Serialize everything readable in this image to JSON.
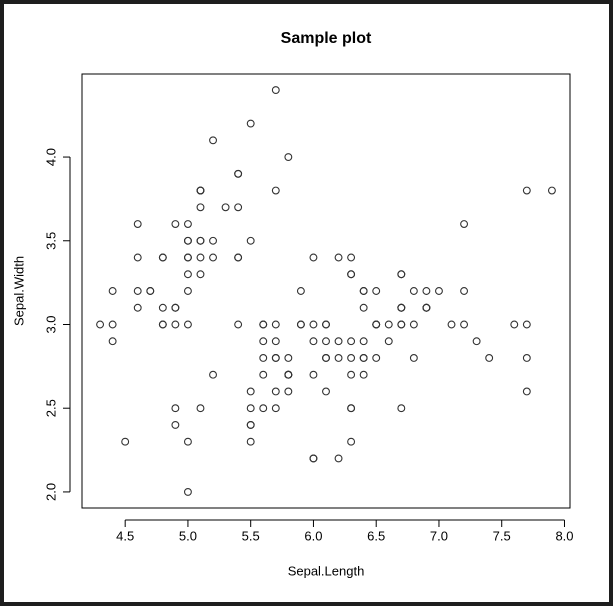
{
  "chart_data": {
    "type": "scatter",
    "title": "Sample plot",
    "x_label": "Sepal.Length",
    "y_label": "Sepal.Width",
    "x": [
      5.1,
      4.9,
      4.7,
      4.6,
      5.0,
      5.4,
      4.6,
      5.0,
      4.4,
      4.9,
      5.4,
      4.8,
      4.8,
      4.3,
      5.8,
      5.7,
      5.4,
      5.1,
      5.7,
      5.1,
      5.4,
      5.1,
      4.6,
      5.1,
      4.8,
      5.0,
      5.0,
      5.2,
      5.2,
      4.7,
      4.8,
      5.4,
      5.2,
      5.5,
      4.9,
      5.0,
      5.5,
      4.9,
      4.4,
      5.1,
      5.0,
      4.5,
      4.4,
      5.0,
      5.1,
      4.8,
      5.1,
      4.6,
      5.3,
      5.0,
      7.0,
      6.4,
      6.9,
      5.5,
      6.5,
      5.7,
      6.3,
      4.9,
      6.6,
      5.2,
      5.0,
      5.9,
      6.0,
      6.1,
      5.6,
      6.7,
      5.6,
      5.8,
      6.2,
      5.6,
      5.9,
      6.1,
      6.3,
      6.1,
      6.4,
      6.6,
      6.8,
      6.7,
      6.0,
      5.7,
      5.5,
      5.5,
      5.8,
      6.0,
      5.4,
      6.0,
      6.7,
      6.3,
      5.6,
      5.5,
      5.5,
      6.1,
      5.8,
      5.0,
      5.6,
      5.7,
      5.7,
      6.2,
      5.1,
      5.7,
      6.3,
      5.8,
      7.1,
      6.3,
      6.5,
      7.6,
      4.9,
      7.3,
      6.7,
      7.2,
      6.5,
      6.4,
      6.8,
      5.7,
      5.8,
      6.4,
      6.5,
      7.7,
      7.7,
      6.0,
      6.9,
      5.6,
      7.7,
      6.3,
      6.7,
      7.2,
      6.2,
      6.1,
      6.4,
      7.2,
      7.4,
      7.9,
      6.4,
      6.3,
      6.1,
      7.7,
      6.3,
      6.4,
      6.0,
      6.9,
      6.7,
      6.9,
      5.8,
      6.8,
      6.7,
      6.7,
      6.3,
      6.5,
      6.2,
      5.9
    ],
    "values": [
      3.5,
      3.0,
      3.2,
      3.1,
      3.6,
      3.9,
      3.4,
      3.4,
      2.9,
      3.1,
      3.7,
      3.4,
      3.0,
      3.0,
      4.0,
      4.4,
      3.9,
      3.5,
      3.8,
      3.8,
      3.4,
      3.7,
      3.6,
      3.3,
      3.4,
      3.0,
      3.4,
      3.5,
      3.4,
      3.2,
      3.1,
      3.4,
      4.1,
      4.2,
      3.1,
      3.2,
      3.5,
      3.6,
      3.0,
      3.4,
      3.5,
      2.3,
      3.2,
      3.5,
      3.8,
      3.0,
      3.8,
      3.2,
      3.7,
      3.3,
      3.2,
      3.2,
      3.1,
      2.3,
      2.8,
      2.8,
      3.3,
      2.4,
      2.9,
      2.7,
      2.0,
      3.0,
      2.2,
      2.9,
      2.9,
      3.1,
      3.0,
      2.7,
      2.2,
      2.5,
      3.2,
      2.8,
      2.5,
      2.8,
      2.9,
      3.0,
      2.8,
      3.0,
      2.9,
      2.6,
      2.4,
      2.4,
      2.7,
      2.7,
      3.0,
      3.4,
      3.1,
      2.3,
      3.0,
      2.5,
      2.6,
      3.0,
      2.6,
      2.3,
      2.7,
      3.0,
      2.9,
      2.9,
      2.5,
      2.8,
      3.3,
      2.7,
      3.0,
      2.9,
      3.0,
      3.0,
      2.5,
      2.9,
      2.5,
      3.6,
      3.2,
      2.7,
      3.0,
      2.5,
      2.8,
      3.2,
      3.0,
      3.8,
      2.6,
      2.2,
      3.2,
      2.8,
      2.8,
      2.7,
      3.3,
      3.2,
      2.8,
      3.0,
      2.8,
      3.0,
      2.8,
      3.8,
      2.8,
      2.8,
      2.6,
      3.0,
      3.4,
      3.1,
      3.0,
      3.1,
      3.1,
      3.1,
      2.7,
      3.2,
      3.3,
      3.0,
      2.5,
      3.0,
      3.4,
      3.0
    ],
    "color": "#333333",
    "xlim": [
      4.156,
      8.044
    ],
    "ylim": [
      1.904,
      4.496
    ],
    "xticks": [
      4.5,
      {
        "value": 5,
        "label": "5.0"
      },
      5.5,
      {
        "value": 6,
        "label": "6.0"
      },
      6.5,
      {
        "value": 7,
        "label": "7.0"
      },
      7.5,
      {
        "value": 8,
        "label": "8.0"
      }
    ],
    "yticks": [
      {
        "value": 2,
        "label": "2.0"
      },
      2.5,
      {
        "value": 3,
        "label": "3.0"
      },
      3.5,
      {
        "value": 4,
        "label": "4.0"
      }
    ]
  }
}
